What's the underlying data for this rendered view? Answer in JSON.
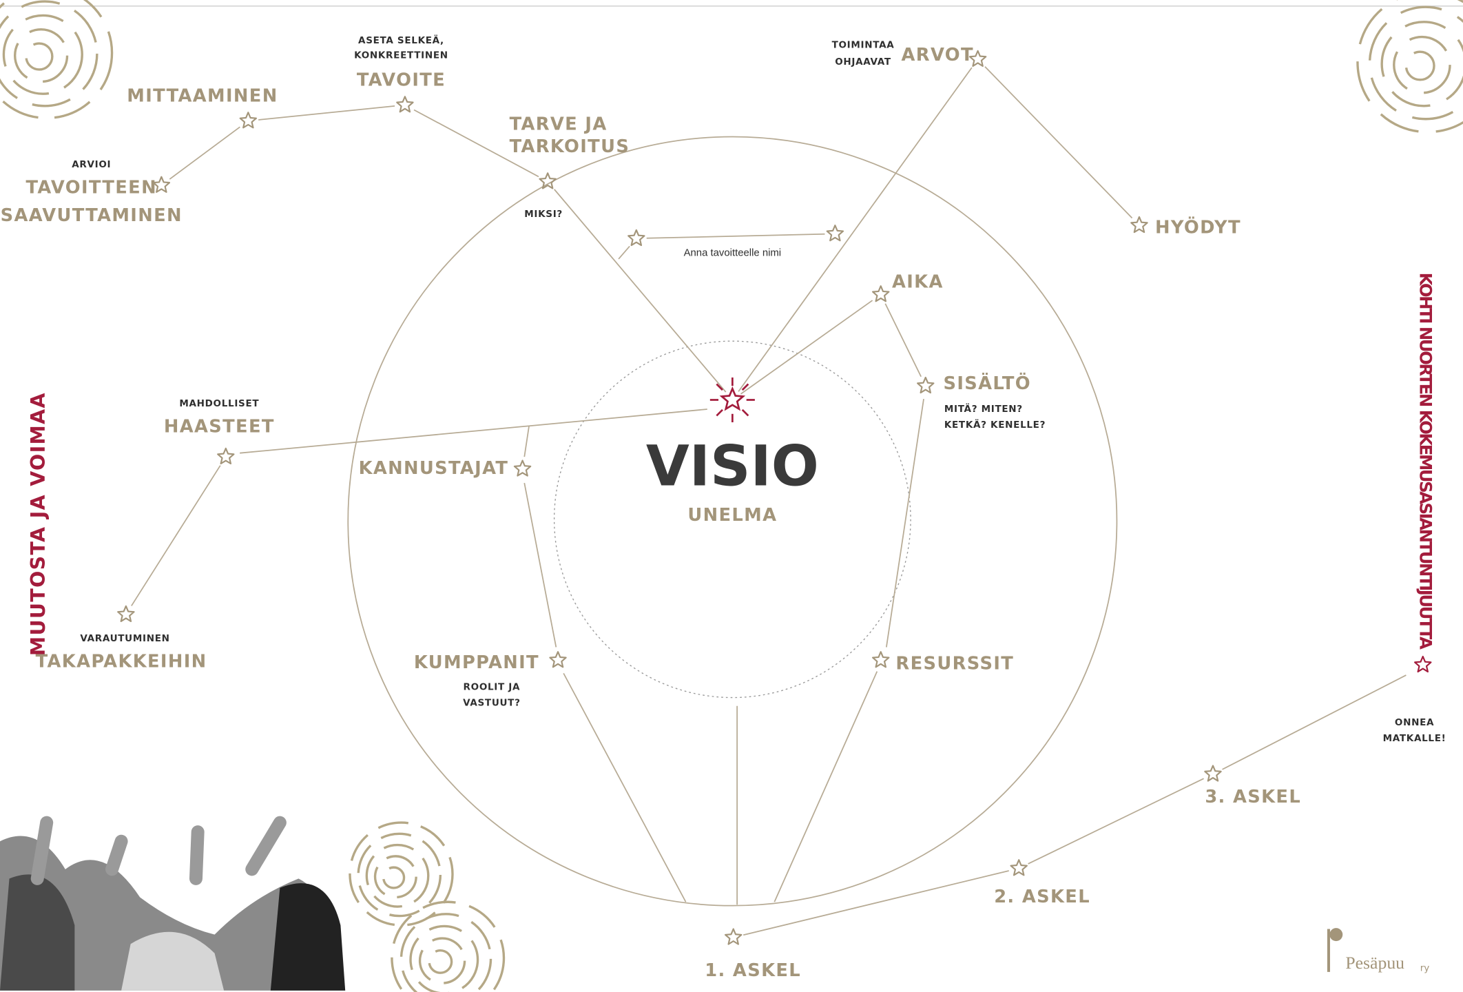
{
  "tavoite": {
    "note": [
      "ASETA SELKEÄ,",
      "KONKREETTINEN"
    ],
    "label": "TAVOITE"
  },
  "mittaaminen": "MITTAAMINEN",
  "arvioi": {
    "note": "ARVIOI",
    "label": [
      "TAVOITTEEN",
      "SAAVUTTAMINEN"
    ]
  },
  "tarve": {
    "label": [
      "TARVE JA",
      "TARKOITUS"
    ],
    "note": "MIKSI?"
  },
  "arvot": {
    "note": [
      "TOIMINTAA",
      "OHJAAVAT"
    ],
    "label": "ARVOT"
  },
  "hyodyt": "HYÖDYT",
  "nimi": "Anna tavoitteelle nimi",
  "aika": "AIKA",
  "sisalto": {
    "label": "SISÄLTÖ",
    "note": [
      "MITÄ? MITEN?",
      "KETKÄ? KENELLE?"
    ]
  },
  "haasteet": {
    "note": "MAHDOLLISET",
    "label": "HAASTEET"
  },
  "kannustajat": "KANNUSTAJAT",
  "visio": {
    "title": "VISIO",
    "subtitle": "UNELMA"
  },
  "takapakit": {
    "note": "VARAUTUMINEN",
    "label": "TAKAPAKKEIHIN"
  },
  "kumppanit": {
    "label": "KUMPPANIT",
    "note": [
      "ROOLIT JA",
      "VASTUUT?"
    ]
  },
  "resurssit": "RESURSSIT",
  "left_banner": "MUUTOSTA JA VOIMAA",
  "right_banner": "KOHTI NUORTEN KOKEMUSASIANTUNTIJUUTTA",
  "onnea": [
    "ONNEA",
    "MATKALLE!"
  ],
  "steps": [
    "1. ASKEL",
    "2. ASKEL",
    "3. ASKEL"
  ],
  "logo": {
    "name": "Pesäpuu",
    "suffix": "ry"
  }
}
